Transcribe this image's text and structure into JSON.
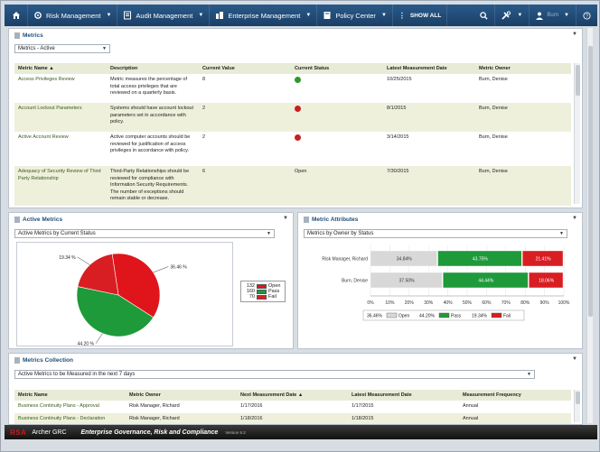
{
  "nav": {
    "items": [
      {
        "label": "Risk Management"
      },
      {
        "label": "Audit Management"
      },
      {
        "label": "Enterprise Management"
      },
      {
        "label": "Policy Center"
      }
    ],
    "show_all": "SHOW ALL",
    "user_name": "Burn"
  },
  "metrics_panel": {
    "title": "Metrics",
    "view_select": "Metrics - Active",
    "columns": [
      "Metric Name ▲",
      "Description",
      "Current Value",
      "Current Status",
      "Latest Measurement Date",
      "Metric Owner"
    ],
    "rows": [
      {
        "name": "Access Privileges Review",
        "description": "Metric measures the percentage of total access privileges that are reviewed on a quarterly basis.",
        "value": "8",
        "status": "green",
        "status_text": "",
        "date": "10/25/2015",
        "owner": "Burn, Denise"
      },
      {
        "name": "Account Lockout Parameters",
        "description": "Systems should have account lockout parameters set in accordance with policy.",
        "value": "2",
        "status": "red",
        "status_text": "",
        "date": "8/1/2015",
        "owner": "Burn, Denise"
      },
      {
        "name": "Active Account Review",
        "description": "Active computer accounts should be reviewed for justification of access privileges in accordance with policy.",
        "value": "2",
        "status": "red",
        "status_text": "",
        "date": "3/14/2015",
        "owner": "Burn, Denise"
      },
      {
        "name": "Adequacy of Security Review of Third Party Relationship",
        "description": "Third-Party Relationships should be reviewed for compliance with Information Security Requirements. The number of exceptions should remain stable or decrease.",
        "value": "6",
        "status": "none",
        "status_text": "Open",
        "date": "7/30/2015",
        "owner": "Burn, Denise"
      }
    ]
  },
  "active_metrics": {
    "title": "Active Metrics",
    "view_select": "Active Metrics by Current Status",
    "colors": {
      "open": "#e0141b",
      "pass": "#1e9a3a",
      "fail": "#d81e22"
    }
  },
  "metric_attributes": {
    "title": "Metric Attributes",
    "view_select": "Metrics by Owner by Status"
  },
  "metrics_collection": {
    "title": "Metrics Collection",
    "view_select": "Active Metrics to be Measured in the next 7 days",
    "columns": [
      "Metric Name",
      "Metric Owner",
      "Next Measurement Date ▲",
      "Latest Measurement Date",
      "Measurement Frequency"
    ],
    "rows": [
      {
        "name": "Business Continuity Plans - Approval",
        "owner": "Risk Manager, Richard",
        "next": "1/17/2016",
        "latest": "1/17/2015",
        "freq": "Annual"
      },
      {
        "name": "Business Continuity Plans - Declaration",
        "owner": "Risk Manager, Richard",
        "next": "1/18/2016",
        "latest": "1/18/2015",
        "freq": "Annual"
      }
    ]
  },
  "chart_data": [
    {
      "type": "pie",
      "title": "",
      "categories": [
        "Open",
        "Pass",
        "Fail"
      ],
      "values": [
        132,
        160,
        70
      ],
      "slice_labels": [
        "36.46 %",
        "44.20 %",
        "19.34 %"
      ],
      "legend": "right"
    },
    {
      "type": "bar",
      "orientation": "horizontal",
      "stacked": "percent",
      "categories": [
        "Risk Manager, Richard",
        "Burn, Denise"
      ],
      "series": [
        {
          "name": "Open",
          "values": [
            34.84,
            37.5
          ]
        },
        {
          "name": "Pass",
          "values": [
            43.75,
            44.44
          ]
        },
        {
          "name": "Fail",
          "values": [
            21.41,
            18.06
          ]
        }
      ],
      "bar_labels": [
        [
          "34.84%",
          "43.75%",
          "21.41%"
        ],
        [
          "37.50%",
          "44.44%",
          "18.06%"
        ]
      ],
      "xlim": [
        0,
        100
      ],
      "x_ticks": [
        "0%",
        "10%",
        "20%",
        "30%",
        "40%",
        "50%",
        "60%",
        "70%",
        "80%",
        "90%",
        "100%"
      ],
      "legend_entries": [
        "36.46%",
        "44.20%",
        "19.34%"
      ],
      "legend_series": [
        "Open",
        "Pass",
        "Fail"
      ],
      "legend": "bottom"
    }
  ],
  "footer": {
    "brand": "RSA",
    "product": "Archer GRC",
    "tagline": "Enterprise Governance, Risk and Compliance",
    "version": "Version 6.2"
  }
}
